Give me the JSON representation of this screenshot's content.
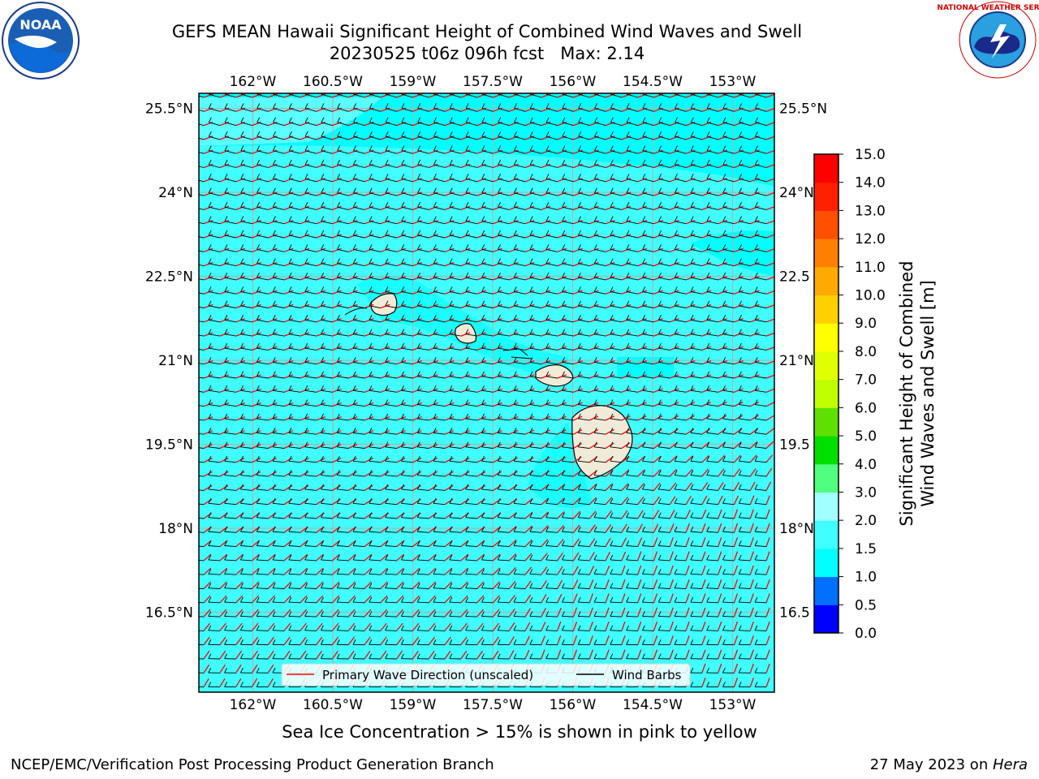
{
  "title_line1": "GEFS MEAN Hawaii Significant Height of Combined Wind Waves and Swell",
  "title_run": "20230525 t06z 096h fcst",
  "title_max": "Max: 2.14",
  "map": {
    "lon_labels": [
      "162°W",
      "160.5°W",
      "159°W",
      "157.5°W",
      "156°W",
      "154.5°W",
      "153°W"
    ],
    "lon_values": [
      -162,
      -160.5,
      -159,
      -157.5,
      -156,
      -154.5,
      -153
    ],
    "lat_labels": [
      "25.5°N",
      "24°N",
      "22.5°N",
      "21°N",
      "19.5°N",
      "18°N",
      "16.5°N"
    ],
    "lat_values": [
      25.5,
      24,
      22.5,
      21,
      19.5,
      18,
      16.5
    ],
    "right_lat_labels": [
      "25.5°N",
      "24°N",
      "22.5",
      "21°N",
      "19.5",
      "18°N",
      "16.5"
    ],
    "lon_range": [
      -163,
      -152.2
    ],
    "lat_range": [
      15.25,
      25.75
    ],
    "islands": [
      {
        "name": "Kauai",
        "lon": -159.5,
        "lat": 22.05
      },
      {
        "name": "Oahu",
        "lon": -158.0,
        "lat": 21.47
      },
      {
        "name": "Maui",
        "lon": -156.35,
        "lat": 20.8
      },
      {
        "name": "Hawaii",
        "lon": -155.5,
        "lat": 19.6
      }
    ],
    "colors": {
      "sea_main": "#00ffff",
      "sea_light": "#40ffff",
      "sea_lighter": "#80ffff",
      "land": "#f0ebd8",
      "wave_arrow": "#ff0000",
      "barb": "#000000",
      "gridline": "#b0b0b0"
    }
  },
  "legend": {
    "wave_label": "Primary Wave Direction (unscaled)",
    "barb_label": "Wind Barbs"
  },
  "colorbar": {
    "label_line1": "Significant Height of Combined",
    "label_line2": "Wind Waves and Swell [m]",
    "ticks": [
      "0.0",
      "0.5",
      "1.0",
      "1.5",
      "2.0",
      "3.0",
      "4.0",
      "5.0",
      "6.0",
      "7.0",
      "8.0",
      "9.0",
      "10.0",
      "11.0",
      "12.0",
      "13.0",
      "14.0",
      "15.0"
    ],
    "colors": [
      "#0000ff",
      "#0070ff",
      "#00ffff",
      "#40ffff",
      "#a0ffff",
      "#50ff80",
      "#00e000",
      "#60e000",
      "#c0ff00",
      "#e0ff00",
      "#ffff00",
      "#ffd000",
      "#ffaa00",
      "#ff8000",
      "#ff5000",
      "#ff2000",
      "#ff0000"
    ]
  },
  "note": "Sea Ice Concentration > 15% is shown in pink to yellow",
  "footer_left": "NCEP/EMC/Verification Post Processing Product Generation Branch",
  "footer_right_date": "27 May 2023 on ",
  "footer_right_host": "Hera",
  "logos": {
    "left_text": "NOAA",
    "right_text": "NATIONAL WEATHER SERVICE"
  }
}
